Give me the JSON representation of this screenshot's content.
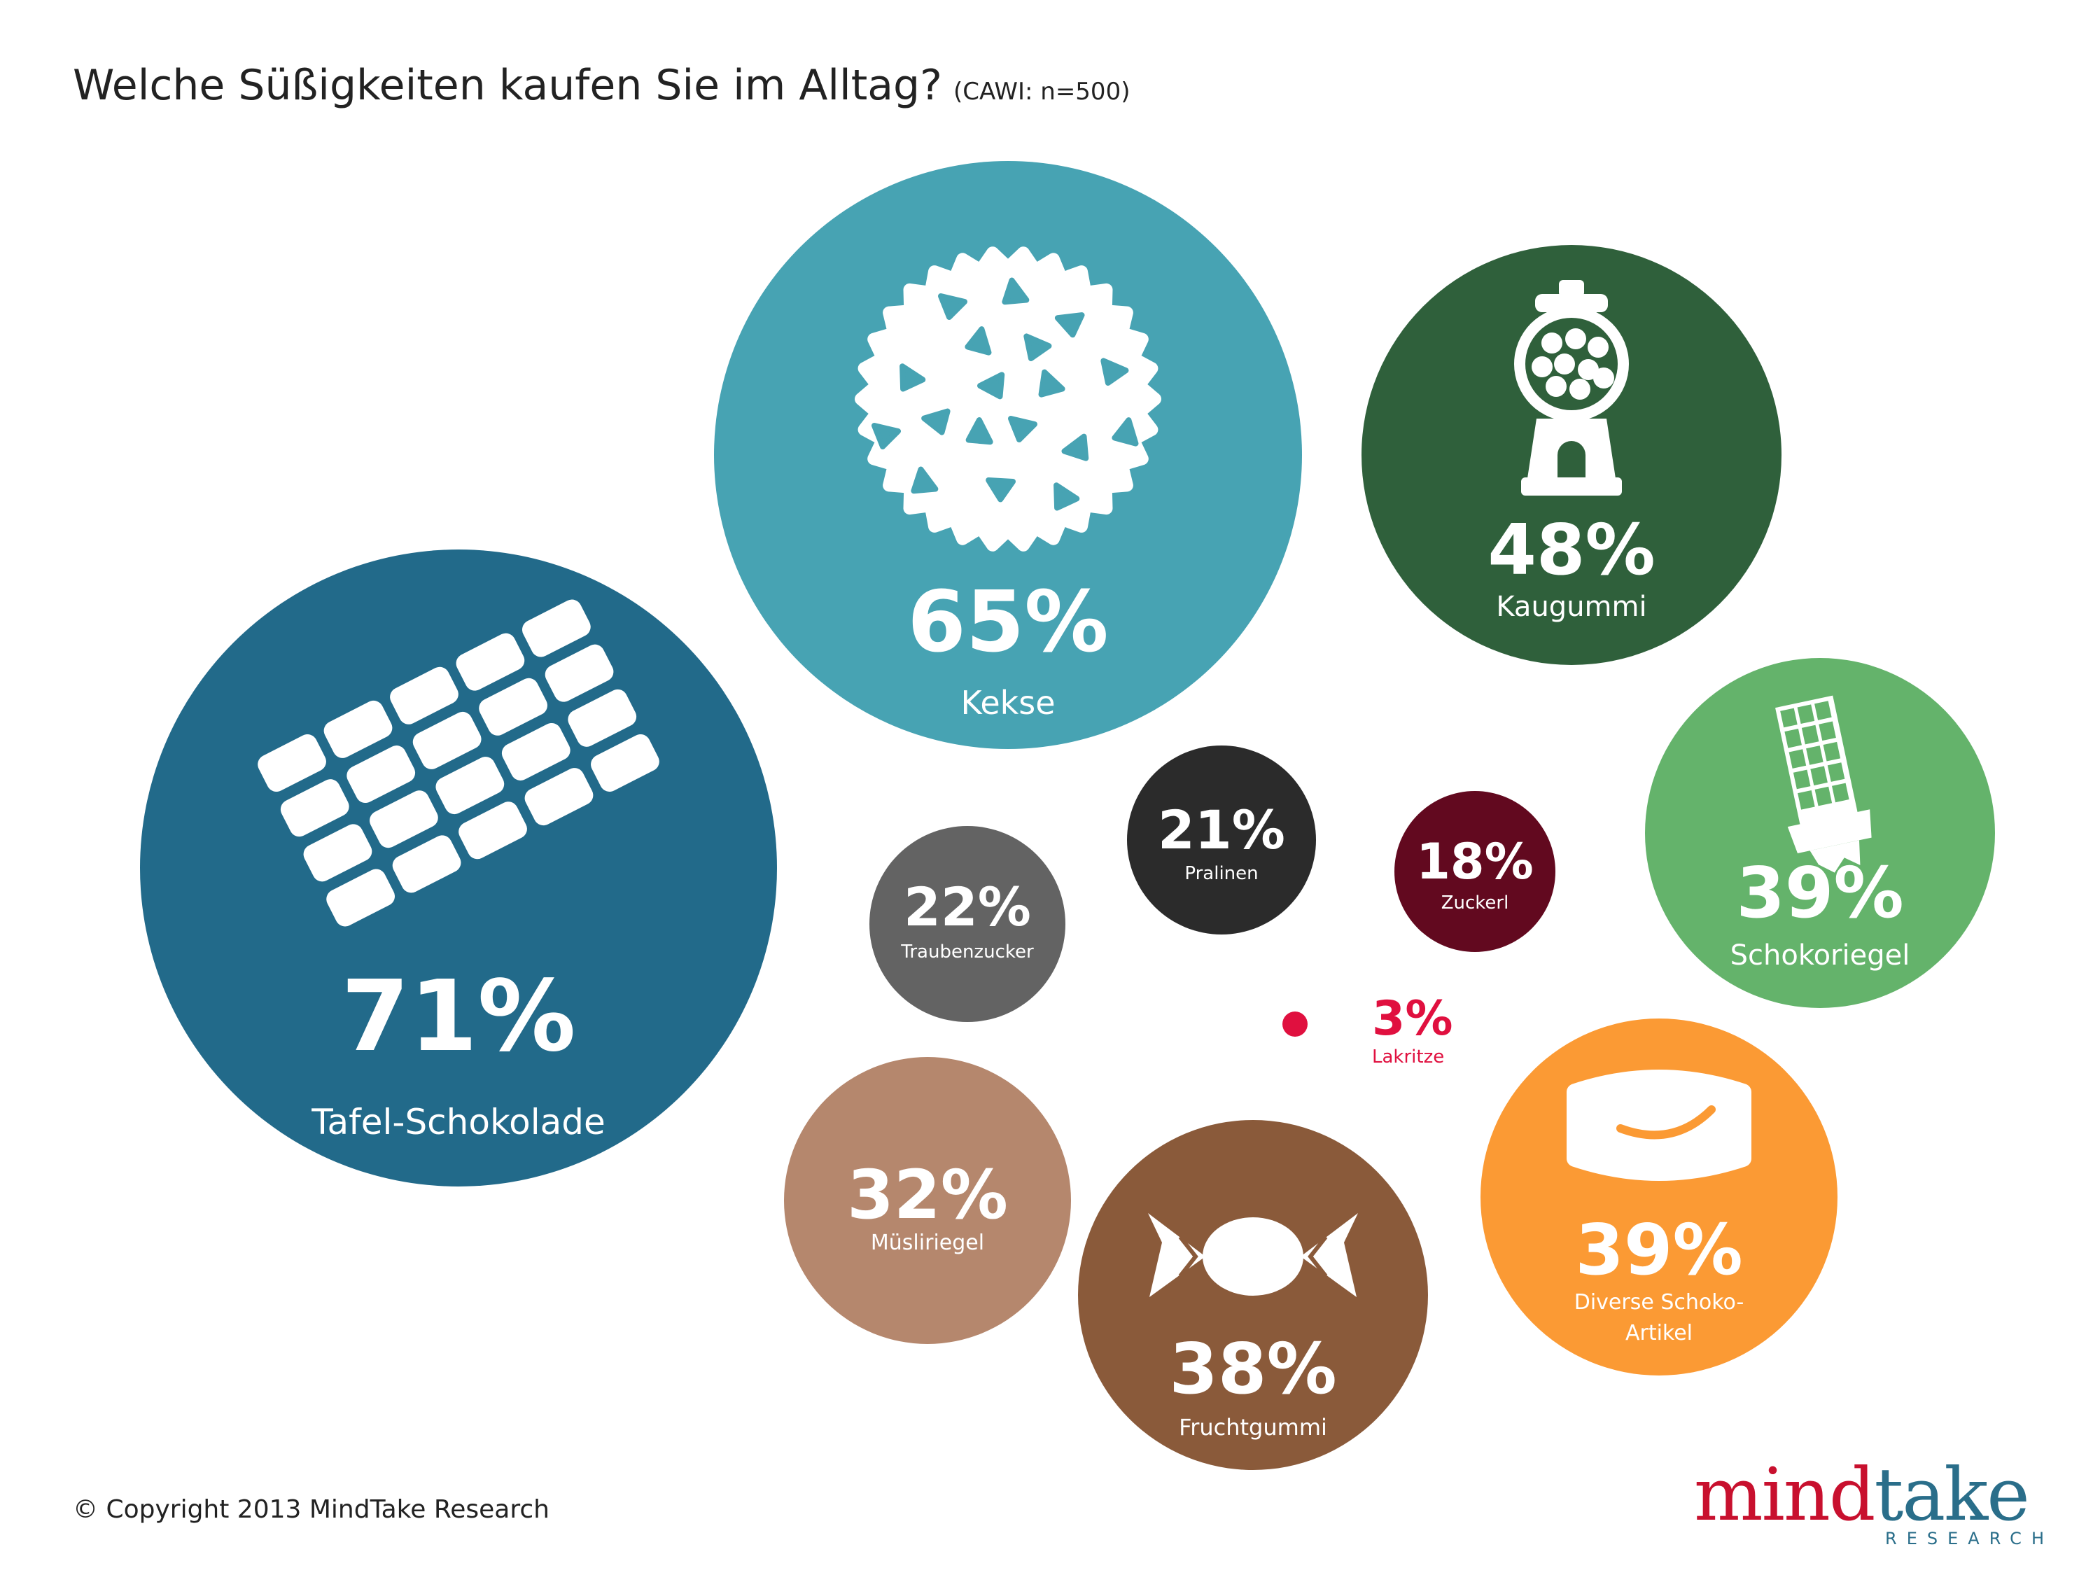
{
  "title": "Welche Süßigkeiten kaufen Sie im Alltag?",
  "subtitle": "(CAWI: n=500)",
  "copyright": "© Copyright 2013 MindTake Research",
  "logo": {
    "word_1": "mind",
    "word_2": "take",
    "tagline": "RESEARCH"
  },
  "chart_data": {
    "type": "bubble",
    "unit": "%",
    "items": [
      {
        "id": "tafel",
        "label": [
          "Tafel-Schokolade"
        ],
        "value": 71,
        "color": "#226a8a",
        "icon": "chocolate-bar-icon",
        "text_color": "#ffffff"
      },
      {
        "id": "kekse",
        "label": [
          "Kekse"
        ],
        "value": 65,
        "color": "#47a3b3",
        "icon": "cookie-icon",
        "text_color": "#ffffff"
      },
      {
        "id": "kaugummi",
        "label": [
          "Kaugummi"
        ],
        "value": 48,
        "color": "#2f603b",
        "icon": "gumball-machine-icon",
        "text_color": "#ffffff"
      },
      {
        "id": "riegel",
        "label": [
          "Schokoriegel"
        ],
        "value": 39,
        "color": "#64b36b",
        "icon": "chocolate-riegel-icon",
        "text_color": "#ffffff"
      },
      {
        "id": "diverse",
        "label": [
          "Diverse Schoko-",
          "Artikel"
        ],
        "value": 39,
        "color": "#fb9a34",
        "icon": "praline-box-icon",
        "text_color": "#ffffff"
      },
      {
        "id": "frucht",
        "label": [
          "Fruchtgummi"
        ],
        "value": 38,
        "color": "#8a5a3a",
        "icon": "wrapped-candy-icon",
        "text_color": "#ffffff"
      },
      {
        "id": "musli",
        "label": [
          "Müsliriegel"
        ],
        "value": 32,
        "color": "#b5876d",
        "icon": "",
        "text_color": "#ffffff"
      },
      {
        "id": "trauben",
        "label": [
          "Traubenzucker"
        ],
        "value": 22,
        "color": "#636363",
        "icon": "",
        "text_color": "#ffffff"
      },
      {
        "id": "pralinen",
        "label": [
          "Pralinen"
        ],
        "value": 21,
        "color": "#2b2b2b",
        "icon": "",
        "text_color": "#ffffff"
      },
      {
        "id": "zuckerl",
        "label": [
          "Zuckerl"
        ],
        "value": 18,
        "color": "#62091f",
        "icon": "",
        "text_color": "#ffffff"
      },
      {
        "id": "lakritze",
        "label": [
          "Lakritze"
        ],
        "value": 3,
        "color": "#e0103f",
        "icon": "",
        "text_color": "#e0103f"
      }
    ]
  }
}
